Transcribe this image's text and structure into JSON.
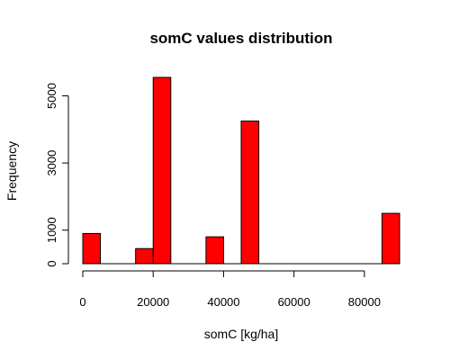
{
  "chart_data": {
    "type": "bar",
    "title": "somC values distribution",
    "xlabel": "somC [kg/ha]",
    "ylabel": "Frequency",
    "bin_width": 5000,
    "bins": [
      {
        "x0": 0,
        "x1": 5000,
        "count": 900
      },
      {
        "x0": 5000,
        "x1": 10000,
        "count": 0
      },
      {
        "x0": 10000,
        "x1": 15000,
        "count": 0
      },
      {
        "x0": 15000,
        "x1": 20000,
        "count": 450
      },
      {
        "x0": 20000,
        "x1": 25000,
        "count": 5550
      },
      {
        "x0": 25000,
        "x1": 30000,
        "count": 0
      },
      {
        "x0": 30000,
        "x1": 35000,
        "count": 0
      },
      {
        "x0": 35000,
        "x1": 40000,
        "count": 800
      },
      {
        "x0": 40000,
        "x1": 45000,
        "count": 0
      },
      {
        "x0": 45000,
        "x1": 50000,
        "count": 4250
      },
      {
        "x0": 50000,
        "x1": 55000,
        "count": 0
      },
      {
        "x0": 55000,
        "x1": 60000,
        "count": 0
      },
      {
        "x0": 60000,
        "x1": 65000,
        "count": 0
      },
      {
        "x0": 65000,
        "x1": 70000,
        "count": 0
      },
      {
        "x0": 70000,
        "x1": 75000,
        "count": 0
      },
      {
        "x0": 75000,
        "x1": 80000,
        "count": 0
      },
      {
        "x0": 80000,
        "x1": 85000,
        "count": 0
      },
      {
        "x0": 85000,
        "x1": 90000,
        "count": 1500
      }
    ],
    "xlim": [
      0,
      90000
    ],
    "ylim": [
      0,
      5550
    ],
    "x_ticks": [
      0,
      20000,
      40000,
      60000,
      80000
    ],
    "y_ticks": [
      0,
      1000,
      3000,
      5000
    ],
    "bar_color": "#ff0000",
    "grid": false
  }
}
